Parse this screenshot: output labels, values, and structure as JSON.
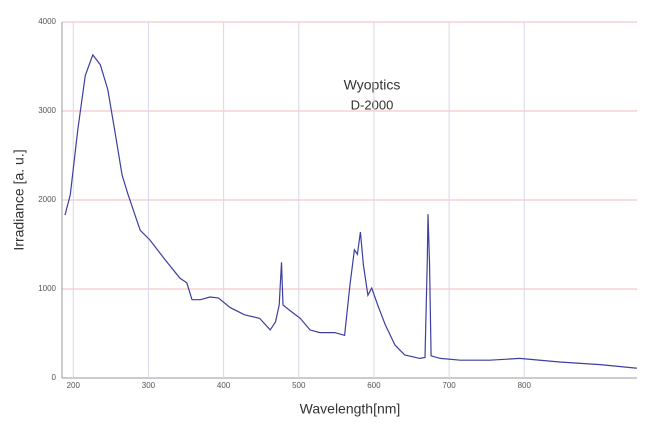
{
  "chart_data": {
    "type": "line",
    "annotations": [
      {
        "text": "Wyoptics",
        "color": "#29a8e0"
      },
      {
        "text": "D-2000",
        "color": "#111111"
      }
    ],
    "x_label": "Wavelength[nm]",
    "y_label": "Irradiance [a. u.]",
    "xlim": [
      185,
      950
    ],
    "ylim": [
      0,
      4000
    ],
    "xticks": [
      200,
      300,
      400,
      500,
      600,
      700,
      800
    ],
    "yticks": [
      0,
      1000,
      2000,
      3000,
      4000
    ],
    "grid": true,
    "series": [
      {
        "color": "#3d3f9e",
        "x": [
          189,
          196,
          206,
          216,
          226,
          236,
          246,
          255,
          265,
          273,
          289,
          302,
          322,
          342,
          351,
          358,
          369,
          382,
          393,
          409,
          428,
          448,
          462,
          469,
          474,
          477,
          479,
          488,
          502,
          515,
          528,
          548,
          561,
          568,
          574,
          578,
          582,
          586,
          592,
          597,
          605,
          615,
          628,
          641,
          661,
          668,
          671,
          672,
          674,
          676,
          688,
          715,
          754,
          794,
          847,
          901,
          950
        ],
        "values": [
          1830,
          2060,
          2790,
          3400,
          3630,
          3520,
          3240,
          2790,
          2280,
          2060,
          1660,
          1550,
          1330,
          1120,
          1070,
          880,
          880,
          910,
          900,
          790,
          710,
          670,
          540,
          630,
          820,
          1300,
          820,
          760,
          670,
          540,
          510,
          510,
          480,
          1040,
          1440,
          1390,
          1640,
          1270,
          930,
          1010,
          820,
          600,
          370,
          260,
          220,
          230,
          1330,
          1840,
          1300,
          250,
          220,
          200,
          200,
          220,
          180,
          150,
          110
        ]
      }
    ]
  }
}
